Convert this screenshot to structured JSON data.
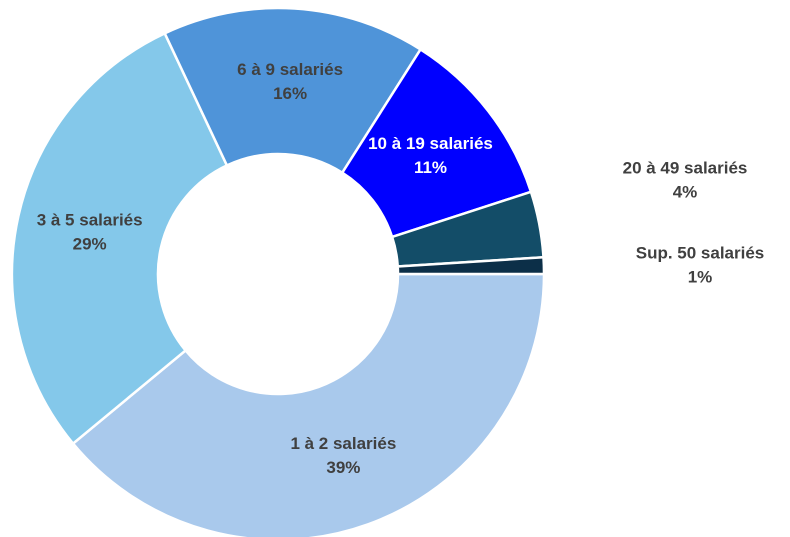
{
  "chart_data": {
    "type": "donut",
    "categories": [
      "1 à 2 salariés",
      "3 à 5 salariés",
      "6 à 9 salariés",
      "10 à 19 salariés",
      "20 à 49 salariés",
      "Sup. 50 salariés"
    ],
    "values": [
      39,
      29,
      16,
      11,
      4,
      1
    ],
    "value_labels": [
      "39%",
      "29%",
      "16%",
      "11%",
      "4%",
      "1%"
    ],
    "colors": [
      "#a9c9ec",
      "#84c8ea",
      "#4f94d9",
      "#0000ff",
      "#134d68",
      "#0c2f48"
    ]
  }
}
